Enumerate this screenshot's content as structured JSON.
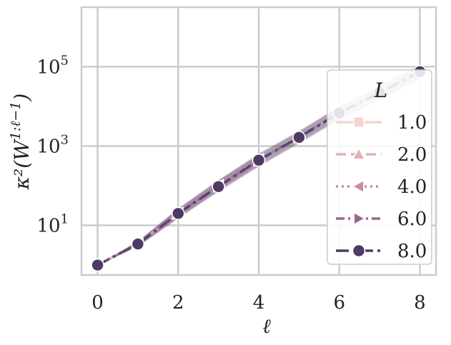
{
  "chart_data": {
    "type": "line",
    "xlabel": "ℓ",
    "ylabel": "κ²(W^{1:ℓ−1})",
    "yscale": "log",
    "xlim": [
      -0.4,
      8.4
    ],
    "ylog10lim": [
      -0.25,
      6.5
    ],
    "grid": true,
    "x_ticks": [
      "0",
      "2",
      "4",
      "6",
      "8"
    ],
    "y_ticks": [
      {
        "base": "10",
        "exp": "1",
        "value": 10
      },
      {
        "base": "10",
        "exp": "3",
        "value": 1000
      },
      {
        "base": "10",
        "exp": "5",
        "value": 100000
      }
    ],
    "legend": {
      "title": "L",
      "placement": "bottom-right"
    },
    "series": [
      {
        "name": "1.0",
        "color": "#f3d5cd",
        "marker": "square",
        "dash": "solid",
        "x": [
          0,
          1
        ],
        "y": [
          1,
          3.4
        ],
        "lower": [
          1,
          3.1
        ],
        "upper": [
          1,
          3.8
        ]
      },
      {
        "name": "2.0",
        "color": "#e2b3b6",
        "marker": "triangle-up",
        "dash": "dashed",
        "x": [
          0,
          1,
          2
        ],
        "y": [
          1,
          3.4,
          20
        ],
        "lower": [
          1,
          3.0,
          17
        ],
        "upper": [
          1,
          3.9,
          23
        ]
      },
      {
        "name": "4.0",
        "color": "#c88aa4",
        "marker": "triangle-left",
        "dash": "dotted",
        "x": [
          0,
          1,
          2,
          3,
          4
        ],
        "y": [
          1,
          3.5,
          20,
          100,
          450
        ],
        "lower": [
          1,
          3.0,
          16,
          80,
          350
        ],
        "upper": [
          1,
          4.0,
          25,
          130,
          580
        ]
      },
      {
        "name": "6.0",
        "color": "#9b6690",
        "marker": "triangle-right",
        "dash": "dashdot",
        "x": [
          0,
          1,
          2,
          3,
          4,
          5,
          6
        ],
        "y": [
          1,
          3.4,
          20,
          100,
          440,
          1700,
          7000
        ],
        "lower": [
          1,
          2.9,
          15,
          75,
          320,
          1250,
          5000
        ],
        "upper": [
          1,
          4.0,
          26,
          135,
          600,
          2300,
          9500
        ]
      },
      {
        "name": "8.0",
        "color": "#4e3a63",
        "marker": "circle",
        "dash": "longdashdot",
        "x": [
          0,
          1,
          2,
          3,
          4,
          5,
          6,
          7,
          8
        ],
        "y": [
          1,
          3.4,
          20,
          95,
          440,
          1650,
          6800,
          22000,
          75000
        ],
        "lower": [
          1,
          2.9,
          15,
          70,
          300,
          1150,
          4600,
          14500,
          50000
        ],
        "upper": [
          1,
          4.0,
          27,
          140,
          650,
          2400,
          10000,
          33000,
          110000
        ]
      }
    ]
  }
}
